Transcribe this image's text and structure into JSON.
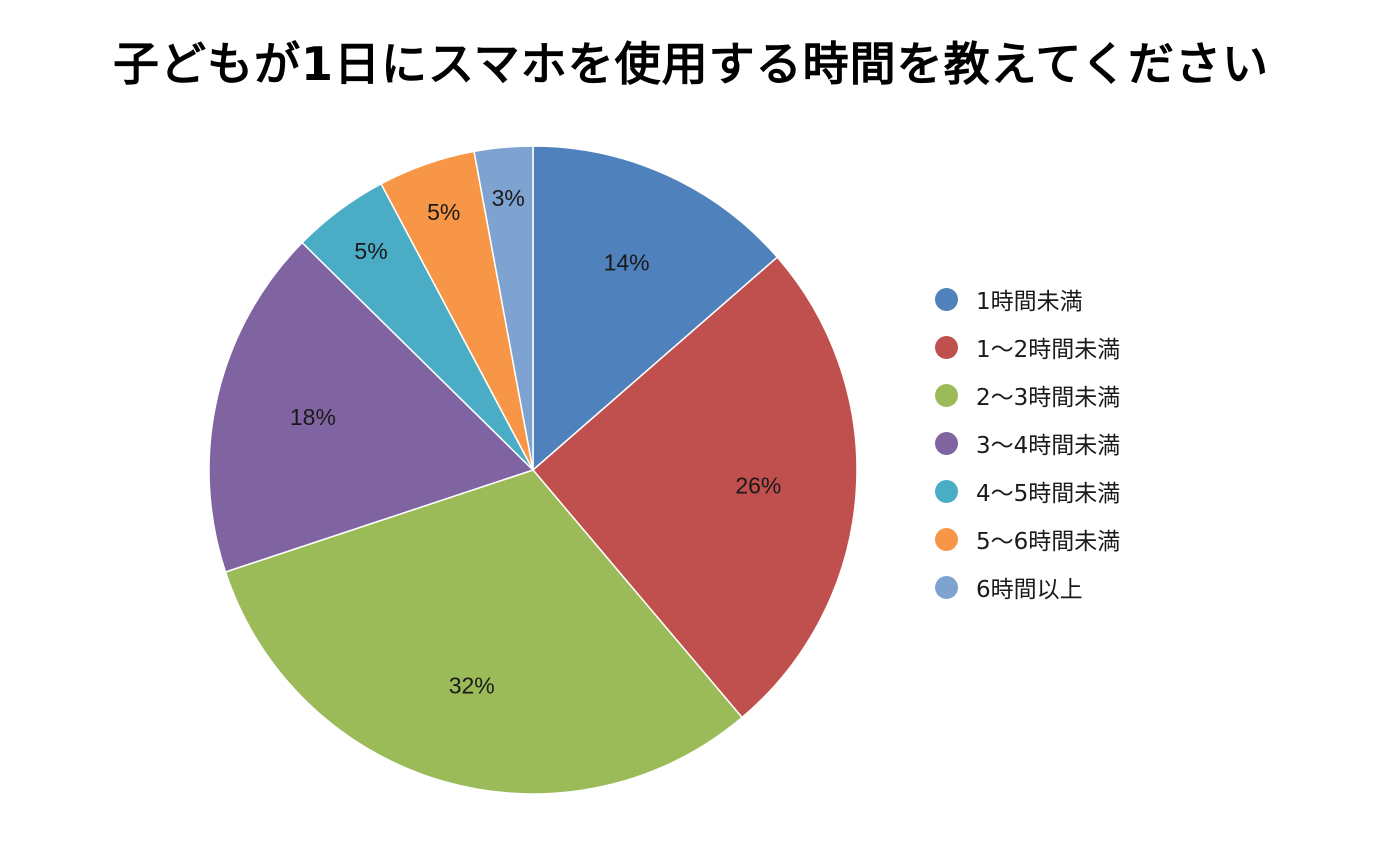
{
  "chart_data": {
    "type": "pie",
    "title": "子どもが1日にスマホを使用する時間を教えてください",
    "categories": [
      "1時間未満",
      "1～2時間未満",
      "2～3時間未満",
      "3～4時間未満",
      "4～5時間未満",
      "5～6時間未満",
      "6時間以上"
    ],
    "values": [
      14,
      26,
      32,
      18,
      5,
      5,
      3
    ],
    "data_labels": [
      "14%",
      "26%",
      "32%",
      "18%",
      "5%",
      "5%",
      "3%"
    ],
    "colors": [
      "#4F81BD",
      "#C0504D",
      "#9BBB59",
      "#8064A2",
      "#4BACC6",
      "#F79646",
      "#7FA3D0"
    ],
    "legend_position": "right",
    "start_angle": "top, clockwise"
  }
}
